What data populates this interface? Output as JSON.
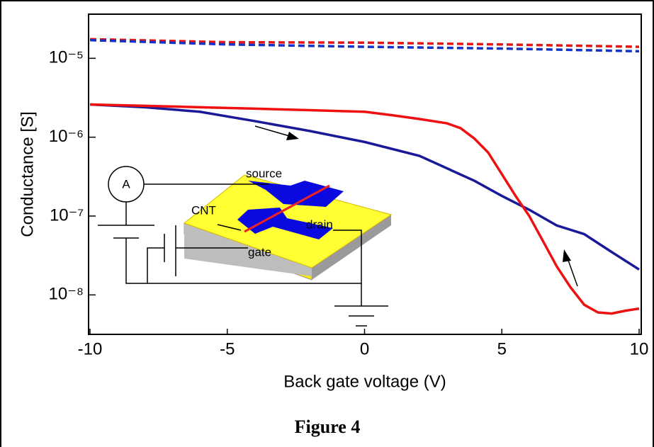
{
  "chart_data": {
    "type": "line",
    "caption": "Figure 4",
    "xlabel": "Back gate voltage (V)",
    "ylabel": "Conductance [S]",
    "log_y": true,
    "xlim": [
      -10,
      10
    ],
    "xticks": [
      -10,
      -5,
      0,
      5,
      10
    ],
    "ylim": [
      3.16e-09,
      3.63e-05
    ],
    "yticks": [
      {
        "value": 1e-05,
        "label": "10⁻⁵"
      },
      {
        "value": 1e-06,
        "label": "10⁻⁶"
      },
      {
        "value": 1e-07,
        "label": "10⁻⁷"
      },
      {
        "value": 1e-08,
        "label": "10⁻⁸"
      }
    ],
    "annotations": [
      "A",
      "source",
      "CNT",
      "drain",
      "gate"
    ],
    "series": [
      {
        "color": "#ee1111",
        "dashed": true,
        "x": [
          -10,
          -5,
          0,
          5,
          10
        ],
        "values": [
          1.75e-05,
          1.6e-05,
          1.58e-05,
          1.5e-05,
          1.4e-05
        ]
      },
      {
        "color": "#1133cc",
        "dashed": true,
        "x": [
          -10,
          -5,
          0,
          5,
          10
        ],
        "values": [
          1.7e-05,
          1.5e-05,
          1.4e-05,
          1.33e-05,
          1.23e-05
        ]
      },
      {
        "color": "#1a1a99",
        "dashed": false,
        "x": [
          -10,
          -8,
          -6,
          -4,
          -2,
          0,
          2,
          4,
          5,
          6,
          7,
          8,
          9,
          10
        ],
        "values": [
          2.6e-06,
          2.4e-06,
          2.1e-06,
          1.6e-06,
          1.2e-06,
          8.7e-07,
          5.8e-07,
          2.8e-07,
          1.8e-07,
          1.2e-07,
          7.6e-08,
          5.9e-08,
          3.5e-08,
          2.1e-08
        ]
      },
      {
        "color": "#ee1111",
        "dashed": false,
        "x": [
          -10,
          -8,
          -6,
          -4,
          -2,
          0,
          1,
          2,
          3,
          3.5,
          4,
          4.5,
          5,
          5.5,
          6,
          6.5,
          7,
          7.5,
          8,
          8.5,
          9,
          9.5,
          10
        ],
        "values": [
          2.6e-06,
          2.5e-06,
          2.4e-06,
          2.3e-06,
          2.2e-06,
          2.1e-06,
          1.9e-06,
          1.7e-06,
          1.5e-06,
          1.3e-06,
          9.6e-07,
          6.4e-07,
          3.4e-07,
          1.8e-07,
          1e-07,
          4.8e-08,
          2.3e-08,
          1.25e-08,
          7.5e-09,
          6e-09,
          5.8e-09,
          6.3e-09,
          6.7e-09
        ]
      }
    ]
  }
}
